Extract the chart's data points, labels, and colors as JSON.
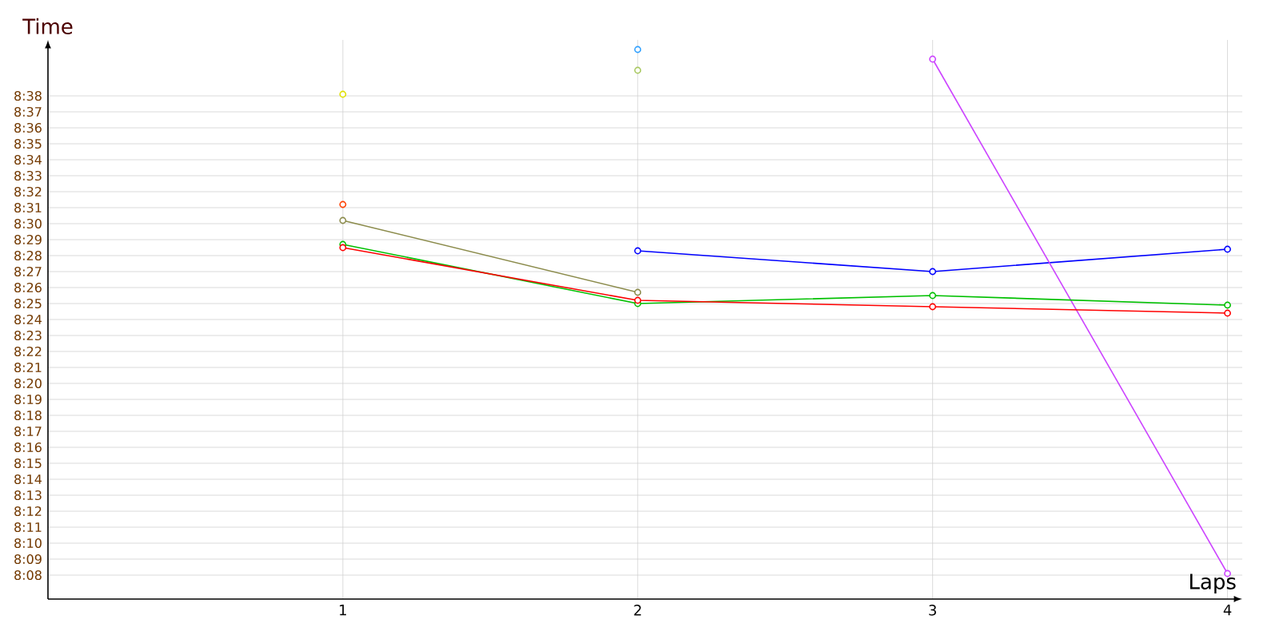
{
  "chart_data": {
    "type": "line",
    "xlabel": "Laps",
    "ylabel": "Time",
    "x": [
      1,
      2,
      3,
      4
    ],
    "xlim": [
      0,
      4.05
    ],
    "xticks": [
      1,
      2,
      3,
      4
    ],
    "ylim": [
      486.5,
      521.5
    ],
    "yticks": [
      {
        "value": 488,
        "label": "8:08"
      },
      {
        "value": 489,
        "label": "8:09"
      },
      {
        "value": 490,
        "label": "8:10"
      },
      {
        "value": 491,
        "label": "8:11"
      },
      {
        "value": 492,
        "label": "8:12"
      },
      {
        "value": 493,
        "label": "8:13"
      },
      {
        "value": 494,
        "label": "8:14"
      },
      {
        "value": 495,
        "label": "8:15"
      },
      {
        "value": 496,
        "label": "8:16"
      },
      {
        "value": 497,
        "label": "8:17"
      },
      {
        "value": 498,
        "label": "8:18"
      },
      {
        "value": 499,
        "label": "8:19"
      },
      {
        "value": 500,
        "label": "8:20"
      },
      {
        "value": 501,
        "label": "8:21"
      },
      {
        "value": 502,
        "label": "8:22"
      },
      {
        "value": 503,
        "label": "8:23"
      },
      {
        "value": 504,
        "label": "8:24"
      },
      {
        "value": 505,
        "label": "8:25"
      },
      {
        "value": 506,
        "label": "8:26"
      },
      {
        "value": 507,
        "label": "8:27"
      },
      {
        "value": 508,
        "label": "8:28"
      },
      {
        "value": 509,
        "label": "8:29"
      },
      {
        "value": 510,
        "label": "8:30"
      },
      {
        "value": 511,
        "label": "8:31"
      },
      {
        "value": 512,
        "label": "8:32"
      },
      {
        "value": 513,
        "label": "8:33"
      },
      {
        "value": 514,
        "label": "8:34"
      },
      {
        "value": 515,
        "label": "8:35"
      },
      {
        "value": 516,
        "label": "8:36"
      },
      {
        "value": 517,
        "label": "8:37"
      },
      {
        "value": 518,
        "label": "8:38"
      }
    ],
    "series": [
      {
        "color": "#e0e000",
        "values": [
          518.1,
          null,
          null,
          null
        ]
      },
      {
        "color": "#ff4000",
        "values": [
          511.2,
          null,
          null,
          null
        ]
      },
      {
        "color": "#8b8b4b",
        "values": [
          510.2,
          505.7,
          null,
          null
        ]
      },
      {
        "color": "#30a0ff",
        "values": [
          null,
          520.9,
          null,
          null
        ]
      },
      {
        "color": "#a8c860",
        "values": [
          null,
          519.6,
          null,
          null
        ]
      },
      {
        "color": "#0000ff",
        "values": [
          null,
          508.3,
          507.0,
          508.4
        ]
      },
      {
        "color": "#cc44ff",
        "values": [
          null,
          null,
          520.3,
          488.1
        ]
      },
      {
        "color": "#00c000",
        "values": [
          508.7,
          505.0,
          505.5,
          504.9
        ]
      },
      {
        "color": "#ff0000",
        "values": [
          508.5,
          505.2,
          504.8,
          504.4
        ]
      }
    ],
    "grid": true,
    "marker": "circle",
    "line_style": "solid"
  }
}
